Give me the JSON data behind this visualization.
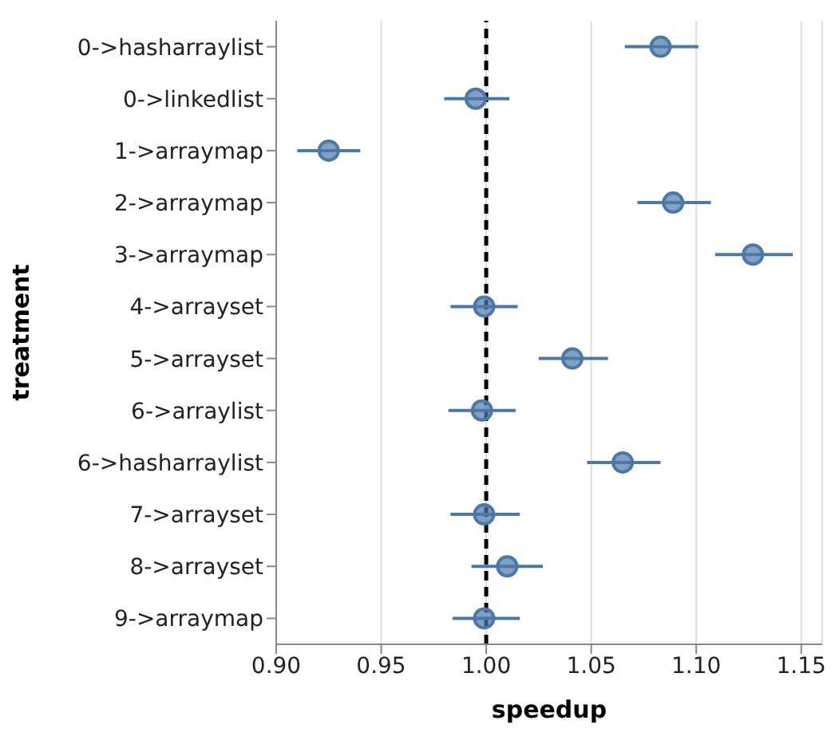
{
  "chart_data": {
    "type": "scatter",
    "orientation": "horizontal",
    "xlabel": "speedup",
    "ylabel": "treatment",
    "categories": [
      "0->hasharraylist",
      "0->linkedlist",
      "1->arraymap",
      "2->arraymap",
      "3->arraymap",
      "4->arrayset",
      "5->arrayset",
      "6->arraylist",
      "6->hasharraylist",
      "7->arrayset",
      "8->arrayset",
      "9->arraymap"
    ],
    "series": [
      {
        "color": "#4c78a8",
        "values": [
          1.083,
          0.995,
          0.925,
          1.089,
          1.127,
          0.999,
          1.041,
          0.998,
          1.065,
          0.999,
          1.01,
          0.999
        ],
        "errors": [
          [
            1.066,
            1.101
          ],
          [
            0.98,
            1.011
          ],
          [
            0.91,
            0.94
          ],
          [
            1.072,
            1.107
          ],
          [
            1.109,
            1.146
          ],
          [
            0.983,
            1.015
          ],
          [
            1.025,
            1.058
          ],
          [
            0.982,
            1.014
          ],
          [
            1.048,
            1.083
          ],
          [
            0.983,
            1.016
          ],
          [
            0.993,
            1.027
          ],
          [
            0.984,
            1.016
          ]
        ]
      }
    ],
    "xlim": [
      0.9,
      1.16
    ],
    "xticks": [
      {
        "value": 0.9,
        "label": "0.90"
      },
      0.95,
      {
        "value": 1,
        "label": "1.00"
      },
      1.05,
      {
        "value": 1.1,
        "label": "1.10"
      },
      1.15
    ],
    "ref_lines": [
      {
        "axis": "x",
        "value": 1,
        "color": "#000000",
        "line_style": "dashed"
      }
    ],
    "grid": "x",
    "marker": "circle",
    "legend": false
  }
}
